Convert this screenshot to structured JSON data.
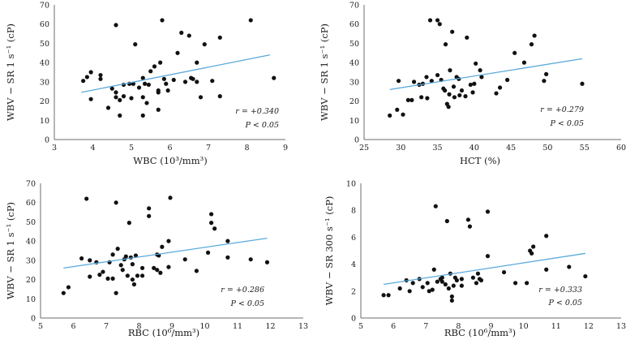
{
  "chart_data": [
    {
      "type": "scatter",
      "xlabel": "WBC (10³/mm³)",
      "ylabel": "WBV − SR 1 s⁻¹ (cP)",
      "xlim": [
        3,
        9
      ],
      "ylim": [
        0,
        70
      ],
      "xticks": [
        3,
        4,
        5,
        6,
        7,
        8,
        9
      ],
      "yticks": [
        0,
        10,
        20,
        30,
        40,
        50,
        60,
        70
      ],
      "annotations": {
        "r": "r = +0.340",
        "p": "P < 0.05"
      },
      "trendline": {
        "x": [
          3.7,
          8.6
        ],
        "y": [
          24.5,
          44.0
        ],
        "color": "#5aa9dc"
      },
      "points": [
        [
          3.75,
          30.5
        ],
        [
          3.85,
          32.5
        ],
        [
          3.95,
          35.0
        ],
        [
          3.95,
          21.0
        ],
        [
          4.2,
          33.5
        ],
        [
          4.2,
          31.5
        ],
        [
          4.4,
          16.5
        ],
        [
          4.5,
          26.5
        ],
        [
          4.6,
          59.5
        ],
        [
          4.6,
          24.5
        ],
        [
          4.6,
          22.0
        ],
        [
          4.7,
          20.5
        ],
        [
          4.7,
          12.5
        ],
        [
          4.8,
          28.5
        ],
        [
          4.8,
          22.5
        ],
        [
          4.95,
          29.0
        ],
        [
          5.0,
          21.5
        ],
        [
          5.05,
          29.0
        ],
        [
          5.1,
          49.5
        ],
        [
          5.2,
          27.0
        ],
        [
          5.3,
          12.5
        ],
        [
          5.3,
          22.0
        ],
        [
          5.3,
          32.0
        ],
        [
          5.35,
          29.0
        ],
        [
          5.4,
          19.0
        ],
        [
          5.45,
          28.5
        ],
        [
          5.5,
          35.5
        ],
        [
          5.6,
          38.0
        ],
        [
          5.7,
          15.5
        ],
        [
          5.7,
          24.5
        ],
        [
          5.7,
          25.5
        ],
        [
          5.75,
          40.0
        ],
        [
          5.8,
          62.0
        ],
        [
          5.85,
          31.5
        ],
        [
          5.9,
          29.0
        ],
        [
          5.95,
          25.5
        ],
        [
          6.1,
          31.0
        ],
        [
          6.2,
          45.0
        ],
        [
          6.3,
          55.5
        ],
        [
          6.4,
          30.0
        ],
        [
          6.5,
          54.0
        ],
        [
          6.55,
          32.0
        ],
        [
          6.6,
          31.5
        ],
        [
          6.7,
          30.0
        ],
        [
          6.7,
          40.0
        ],
        [
          6.8,
          22.0
        ],
        [
          6.9,
          49.5
        ],
        [
          7.1,
          30.5
        ],
        [
          7.3,
          53.0
        ],
        [
          7.3,
          22.5
        ],
        [
          8.1,
          62.0
        ],
        [
          8.7,
          32.0
        ]
      ]
    },
    {
      "type": "scatter",
      "xlabel": "HCT (%)",
      "ylabel": "WBV − SR 1 s⁻¹ (cP)",
      "xlim": [
        25,
        60
      ],
      "ylim": [
        0,
        70
      ],
      "xticks": [
        25,
        30,
        35,
        40,
        45,
        50,
        55,
        60
      ],
      "yticks": [
        0,
        10,
        20,
        30,
        40,
        50,
        60,
        70
      ],
      "annotations": {
        "r": "r = +0.279",
        "p": "P < 0.05"
      },
      "trendline": {
        "x": [
          28.5,
          54.7
        ],
        "y": [
          26.0,
          42.0
        ],
        "color": "#5aa9dc"
      },
      "points": [
        [
          28.5,
          12.5
        ],
        [
          29.5,
          15.5
        ],
        [
          29.7,
          30.5
        ],
        [
          30.3,
          13.0
        ],
        [
          31.0,
          20.5
        ],
        [
          31.5,
          20.5
        ],
        [
          31.8,
          30.0
        ],
        [
          32.5,
          28.5
        ],
        [
          32.8,
          22.0
        ],
        [
          33.0,
          29.0
        ],
        [
          33.5,
          32.5
        ],
        [
          33.6,
          21.5
        ],
        [
          34.0,
          62.0
        ],
        [
          34.2,
          30.5
        ],
        [
          35.0,
          62.0
        ],
        [
          35.0,
          33.5
        ],
        [
          35.3,
          60.0
        ],
        [
          35.5,
          31.0
        ],
        [
          35.8,
          26.5
        ],
        [
          36.0,
          25.5
        ],
        [
          36.1,
          49.5
        ],
        [
          36.3,
          18.5
        ],
        [
          36.5,
          17.0
        ],
        [
          36.6,
          23.5
        ],
        [
          36.7,
          36.0
        ],
        [
          37.0,
          56.0
        ],
        [
          37.2,
          27.5
        ],
        [
          37.3,
          22.0
        ],
        [
          37.6,
          32.5
        ],
        [
          37.9,
          31.5
        ],
        [
          38.0,
          23.0
        ],
        [
          38.3,
          25.5
        ],
        [
          38.8,
          22.5
        ],
        [
          39.0,
          53.0
        ],
        [
          39.5,
          28.5
        ],
        [
          39.8,
          24.5
        ],
        [
          40.0,
          29.0
        ],
        [
          40.2,
          39.5
        ],
        [
          40.8,
          36.0
        ],
        [
          41.0,
          32.5
        ],
        [
          43.0,
          24.0
        ],
        [
          43.5,
          27.0
        ],
        [
          44.5,
          31.0
        ],
        [
          45.5,
          45.0
        ],
        [
          46.8,
          40.0
        ],
        [
          47.8,
          49.5
        ],
        [
          48.2,
          54.0
        ],
        [
          49.5,
          30.5
        ],
        [
          49.8,
          34.0
        ],
        [
          54.7,
          29.0
        ]
      ]
    },
    {
      "type": "scatter",
      "xlabel": "RBC (10⁶/mm³)",
      "ylabel": "WBV − SR 1 s⁻¹ (cP)",
      "xlim": [
        5,
        13
      ],
      "ylim": [
        0,
        70
      ],
      "xticks": [
        5,
        6,
        7,
        8,
        9,
        10,
        11,
        12,
        13
      ],
      "yticks": [
        0,
        10,
        20,
        30,
        40,
        50,
        60,
        70
      ],
      "annotations": {
        "r": "r = +0.286",
        "p": "P < 0.05"
      },
      "trendline": {
        "x": [
          5.7,
          11.9
        ],
        "y": [
          26.0,
          41.5
        ],
        "color": "#5aa9dc"
      },
      "points": [
        [
          5.7,
          13.0
        ],
        [
          5.85,
          16.0
        ],
        [
          6.25,
          31.0
        ],
        [
          6.4,
          62.0
        ],
        [
          6.5,
          21.5
        ],
        [
          6.5,
          30.0
        ],
        [
          6.7,
          29.0
        ],
        [
          6.8,
          22.5
        ],
        [
          6.9,
          24.0
        ],
        [
          7.05,
          20.5
        ],
        [
          7.1,
          29.0
        ],
        [
          7.2,
          20.5
        ],
        [
          7.2,
          33.0
        ],
        [
          7.3,
          13.0
        ],
        [
          7.3,
          60.0
        ],
        [
          7.35,
          36.0
        ],
        [
          7.45,
          27.5
        ],
        [
          7.5,
          25.0
        ],
        [
          7.55,
          30.5
        ],
        [
          7.6,
          32.0
        ],
        [
          7.65,
          22.0
        ],
        [
          7.7,
          49.5
        ],
        [
          7.75,
          31.5
        ],
        [
          7.8,
          28.0
        ],
        [
          7.8,
          20.0
        ],
        [
          7.85,
          17.5
        ],
        [
          7.9,
          32.5
        ],
        [
          7.95,
          22.0
        ],
        [
          8.1,
          22.0
        ],
        [
          8.1,
          26.0
        ],
        [
          8.3,
          57.0
        ],
        [
          8.3,
          53.0
        ],
        [
          8.45,
          26.0
        ],
        [
          8.55,
          25.0
        ],
        [
          8.55,
          33.0
        ],
        [
          8.6,
          32.5
        ],
        [
          8.65,
          23.5
        ],
        [
          8.7,
          37.0
        ],
        [
          8.9,
          26.5
        ],
        [
          8.9,
          40.0
        ],
        [
          8.95,
          62.5
        ],
        [
          9.4,
          30.5
        ],
        [
          9.75,
          24.5
        ],
        [
          10.1,
          34.0
        ],
        [
          10.2,
          54.0
        ],
        [
          10.2,
          49.5
        ],
        [
          10.3,
          46.5
        ],
        [
          10.7,
          31.5
        ],
        [
          10.7,
          40.0
        ],
        [
          11.4,
          30.5
        ],
        [
          11.9,
          29.0
        ]
      ]
    },
    {
      "type": "scatter",
      "xlabel": "RBC (10⁶/mm³)",
      "ylabel": "WBV − SR 300 s⁻¹ (cP)",
      "xlim": [
        5,
        13
      ],
      "ylim": [
        0,
        10
      ],
      "xticks": [
        5,
        6,
        7,
        8,
        9,
        10,
        11,
        12,
        13
      ],
      "yticks": [
        0,
        2,
        4,
        6,
        8,
        10
      ],
      "annotations": {
        "r": "r = +0.333",
        "p": "P < 0.05"
      },
      "trendline": {
        "x": [
          5.7,
          11.9
        ],
        "y": [
          2.5,
          4.8
        ],
        "color": "#5aa9dc"
      },
      "points": [
        [
          5.7,
          1.7
        ],
        [
          5.85,
          1.7
        ],
        [
          6.2,
          2.2
        ],
        [
          6.4,
          2.8
        ],
        [
          6.5,
          2.0
        ],
        [
          6.6,
          2.6
        ],
        [
          6.8,
          2.9
        ],
        [
          6.9,
          2.3
        ],
        [
          7.05,
          2.6
        ],
        [
          7.1,
          2.0
        ],
        [
          7.2,
          2.1
        ],
        [
          7.25,
          3.6
        ],
        [
          7.3,
          8.3
        ],
        [
          7.35,
          2.7
        ],
        [
          7.45,
          2.9
        ],
        [
          7.5,
          2.7
        ],
        [
          7.5,
          3.0
        ],
        [
          7.6,
          2.5
        ],
        [
          7.65,
          7.2
        ],
        [
          7.7,
          2.2
        ],
        [
          7.75,
          3.3
        ],
        [
          7.8,
          1.6
        ],
        [
          7.8,
          1.3
        ],
        [
          7.85,
          2.4
        ],
        [
          7.9,
          3.0
        ],
        [
          7.95,
          2.8
        ],
        [
          8.1,
          2.4
        ],
        [
          8.1,
          2.9
        ],
        [
          8.3,
          7.3
        ],
        [
          8.35,
          6.8
        ],
        [
          8.45,
          3.0
        ],
        [
          8.55,
          2.6
        ],
        [
          8.6,
          3.3
        ],
        [
          8.65,
          2.9
        ],
        [
          8.7,
          2.8
        ],
        [
          8.9,
          4.6
        ],
        [
          8.9,
          7.9
        ],
        [
          9.4,
          3.4
        ],
        [
          9.75,
          2.6
        ],
        [
          10.1,
          2.6
        ],
        [
          10.2,
          5.0
        ],
        [
          10.25,
          4.8
        ],
        [
          10.3,
          5.3
        ],
        [
          10.7,
          6.1
        ],
        [
          10.7,
          3.6
        ],
        [
          11.4,
          3.8
        ],
        [
          11.9,
          3.1
        ]
      ]
    }
  ]
}
